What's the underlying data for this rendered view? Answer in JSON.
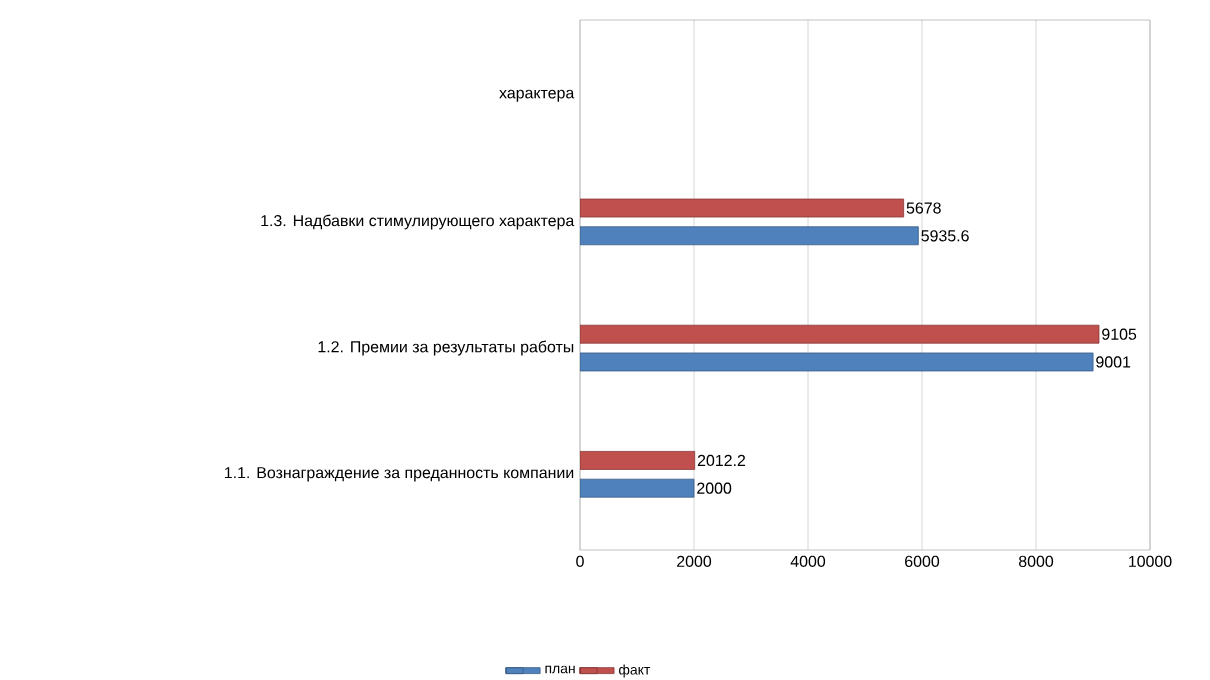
{
  "chart_data": {
    "type": "bar",
    "orientation": "horizontal",
    "categories": [
      "характера",
      "1.3. Надбавки стимулирующего характера",
      "1.2. Премии за результаты работы",
      "1.1. Вознаграждение за преданность компании"
    ],
    "series": [
      {
        "name": "план",
        "color": "#4f81bd",
        "values": [
          null,
          5935.6,
          9001,
          2000
        ],
        "value_labels": [
          null,
          "5935.6",
          "9001",
          "2000"
        ]
      },
      {
        "name": "факт",
        "color": "#c0504d",
        "values": [
          null,
          5678,
          9105,
          2012.2
        ],
        "value_labels": [
          null,
          "5678",
          "9105",
          "2012.2"
        ]
      }
    ],
    "xlim": [
      0,
      10000
    ],
    "xticks": [
      0,
      2000,
      4000,
      6000,
      8000,
      10000
    ],
    "grid": "x",
    "legend": "bottom"
  }
}
